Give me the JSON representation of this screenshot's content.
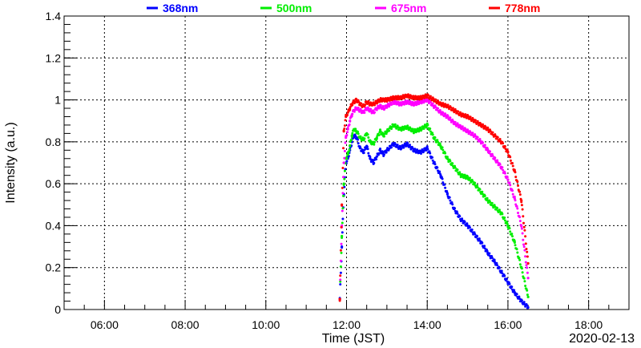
{
  "chart_data": {
    "type": "scatter",
    "xlabel": "Time (JST)",
    "ylabel": "Intensity (a.u.)",
    "date_label": "2020-02-13",
    "xlim": [
      "05:00",
      "19:00"
    ],
    "ylim": [
      0,
      1.4
    ],
    "x_ticks": [
      "06:00",
      "08:00",
      "10:00",
      "12:00",
      "14:00",
      "16:00",
      "18:00"
    ],
    "y_ticks": [
      "0",
      "0.2",
      "0.4",
      "0.6",
      "0.8",
      "1",
      "1.2",
      "1.4"
    ],
    "grid": true,
    "legend_position": "top",
    "series": [
      {
        "name": "368nm",
        "color": "#0000ff",
        "x": [
          "11:50",
          "11:53",
          "11:56",
          "11:59",
          "12:02",
          "12:05",
          "12:08",
          "12:11",
          "12:15",
          "12:20",
          "12:25",
          "12:30",
          "12:35",
          "12:40",
          "12:45",
          "12:50",
          "12:55",
          "13:00",
          "13:10",
          "13:20",
          "13:30",
          "13:40",
          "13:50",
          "14:00",
          "14:10",
          "14:20",
          "14:30",
          "14:40",
          "14:50",
          "15:00",
          "15:10",
          "15:20",
          "15:30",
          "15:40",
          "15:50",
          "16:00",
          "16:10",
          "16:20",
          "16:30"
        ],
        "y": [
          0.05,
          0.3,
          0.55,
          0.7,
          0.72,
          0.76,
          0.8,
          0.83,
          0.82,
          0.77,
          0.75,
          0.78,
          0.72,
          0.7,
          0.73,
          0.76,
          0.74,
          0.76,
          0.79,
          0.77,
          0.79,
          0.76,
          0.75,
          0.77,
          0.7,
          0.64,
          0.55,
          0.48,
          0.43,
          0.4,
          0.36,
          0.32,
          0.27,
          0.23,
          0.18,
          0.13,
          0.08,
          0.04,
          0.01
        ]
      },
      {
        "name": "500nm",
        "color": "#00ee00",
        "x": [
          "11:50",
          "11:53",
          "11:56",
          "11:59",
          "12:02",
          "12:05",
          "12:08",
          "12:11",
          "12:15",
          "12:20",
          "12:25",
          "12:30",
          "12:35",
          "12:40",
          "12:45",
          "12:50",
          "12:55",
          "13:00",
          "13:10",
          "13:20",
          "13:30",
          "13:40",
          "13:50",
          "14:00",
          "14:10",
          "14:20",
          "14:30",
          "14:40",
          "14:50",
          "15:00",
          "15:10",
          "15:20",
          "15:30",
          "15:40",
          "15:50",
          "16:00",
          "16:10",
          "16:20",
          "16:30"
        ],
        "y": [
          0.05,
          0.35,
          0.6,
          0.72,
          0.74,
          0.78,
          0.83,
          0.86,
          0.85,
          0.82,
          0.81,
          0.84,
          0.8,
          0.79,
          0.82,
          0.85,
          0.83,
          0.85,
          0.88,
          0.86,
          0.87,
          0.85,
          0.86,
          0.88,
          0.82,
          0.78,
          0.72,
          0.68,
          0.64,
          0.63,
          0.6,
          0.56,
          0.52,
          0.49,
          0.46,
          0.4,
          0.32,
          0.2,
          0.06
        ]
      },
      {
        "name": "675nm",
        "color": "#ff00ff",
        "x": [
          "11:50",
          "11:53",
          "11:56",
          "11:59",
          "12:02",
          "12:05",
          "12:08",
          "12:11",
          "12:15",
          "12:20",
          "12:25",
          "12:30",
          "12:35",
          "12:40",
          "12:45",
          "12:50",
          "12:55",
          "13:00",
          "13:10",
          "13:20",
          "13:30",
          "13:40",
          "13:50",
          "14:00",
          "14:10",
          "14:20",
          "14:30",
          "14:40",
          "14:50",
          "15:00",
          "15:10",
          "15:20",
          "15:30",
          "15:40",
          "15:50",
          "16:00",
          "16:10",
          "16:20",
          "16:30"
        ],
        "y": [
          0.05,
          0.4,
          0.7,
          0.82,
          0.86,
          0.9,
          0.93,
          0.95,
          0.96,
          0.95,
          0.94,
          0.96,
          0.95,
          0.94,
          0.96,
          0.97,
          0.96,
          0.97,
          0.99,
          0.98,
          0.99,
          0.98,
          0.99,
          1.0,
          0.97,
          0.94,
          0.92,
          0.89,
          0.87,
          0.85,
          0.83,
          0.8,
          0.76,
          0.72,
          0.68,
          0.62,
          0.53,
          0.4,
          0.15
        ]
      },
      {
        "name": "778nm",
        "color": "#ff0000",
        "x": [
          "11:50",
          "11:53",
          "11:56",
          "11:59",
          "12:02",
          "12:05",
          "12:08",
          "12:11",
          "12:15",
          "12:20",
          "12:25",
          "12:30",
          "12:35",
          "12:40",
          "12:45",
          "12:50",
          "12:55",
          "13:00",
          "13:10",
          "13:20",
          "13:30",
          "13:40",
          "13:50",
          "14:00",
          "14:10",
          "14:20",
          "14:30",
          "14:40",
          "14:50",
          "15:00",
          "15:10",
          "15:20",
          "15:30",
          "15:40",
          "15:50",
          "16:00",
          "16:10",
          "16:20",
          "16:30"
        ],
        "y": [
          0.05,
          0.5,
          0.85,
          0.92,
          0.94,
          0.96,
          0.98,
          0.99,
          1.0,
          0.98,
          0.97,
          0.99,
          0.98,
          0.98,
          0.99,
          1.0,
          1.0,
          1.0,
          1.01,
          1.01,
          1.02,
          1.01,
          1.01,
          1.02,
          1.0,
          0.98,
          0.97,
          0.95,
          0.93,
          0.92,
          0.9,
          0.88,
          0.86,
          0.83,
          0.8,
          0.75,
          0.66,
          0.52,
          0.22
        ]
      }
    ]
  }
}
